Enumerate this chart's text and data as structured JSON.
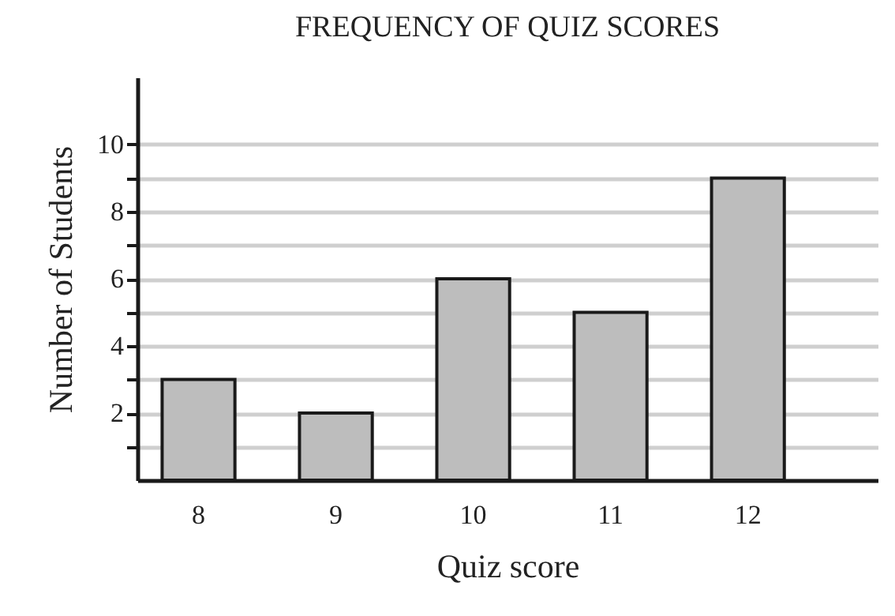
{
  "chart_data": {
    "type": "bar",
    "title": "FREQUENCY OF QUIZ SCORES",
    "xlabel": "Quiz score",
    "ylabel": "Number of Students",
    "categories": [
      "8",
      "9",
      "10",
      "11",
      "12"
    ],
    "values": [
      3,
      2,
      6,
      5,
      9
    ],
    "color": "#bdbdbd",
    "ylim": [
      0,
      12
    ],
    "yticks": [
      {
        "value": 1,
        "label": null
      },
      2,
      {
        "value": 3,
        "label": null
      },
      4,
      {
        "value": 5,
        "label": null
      },
      6,
      {
        "value": 7,
        "label": null
      },
      8,
      {
        "value": 9,
        "label": null
      },
      10
    ],
    "grid": "y"
  }
}
